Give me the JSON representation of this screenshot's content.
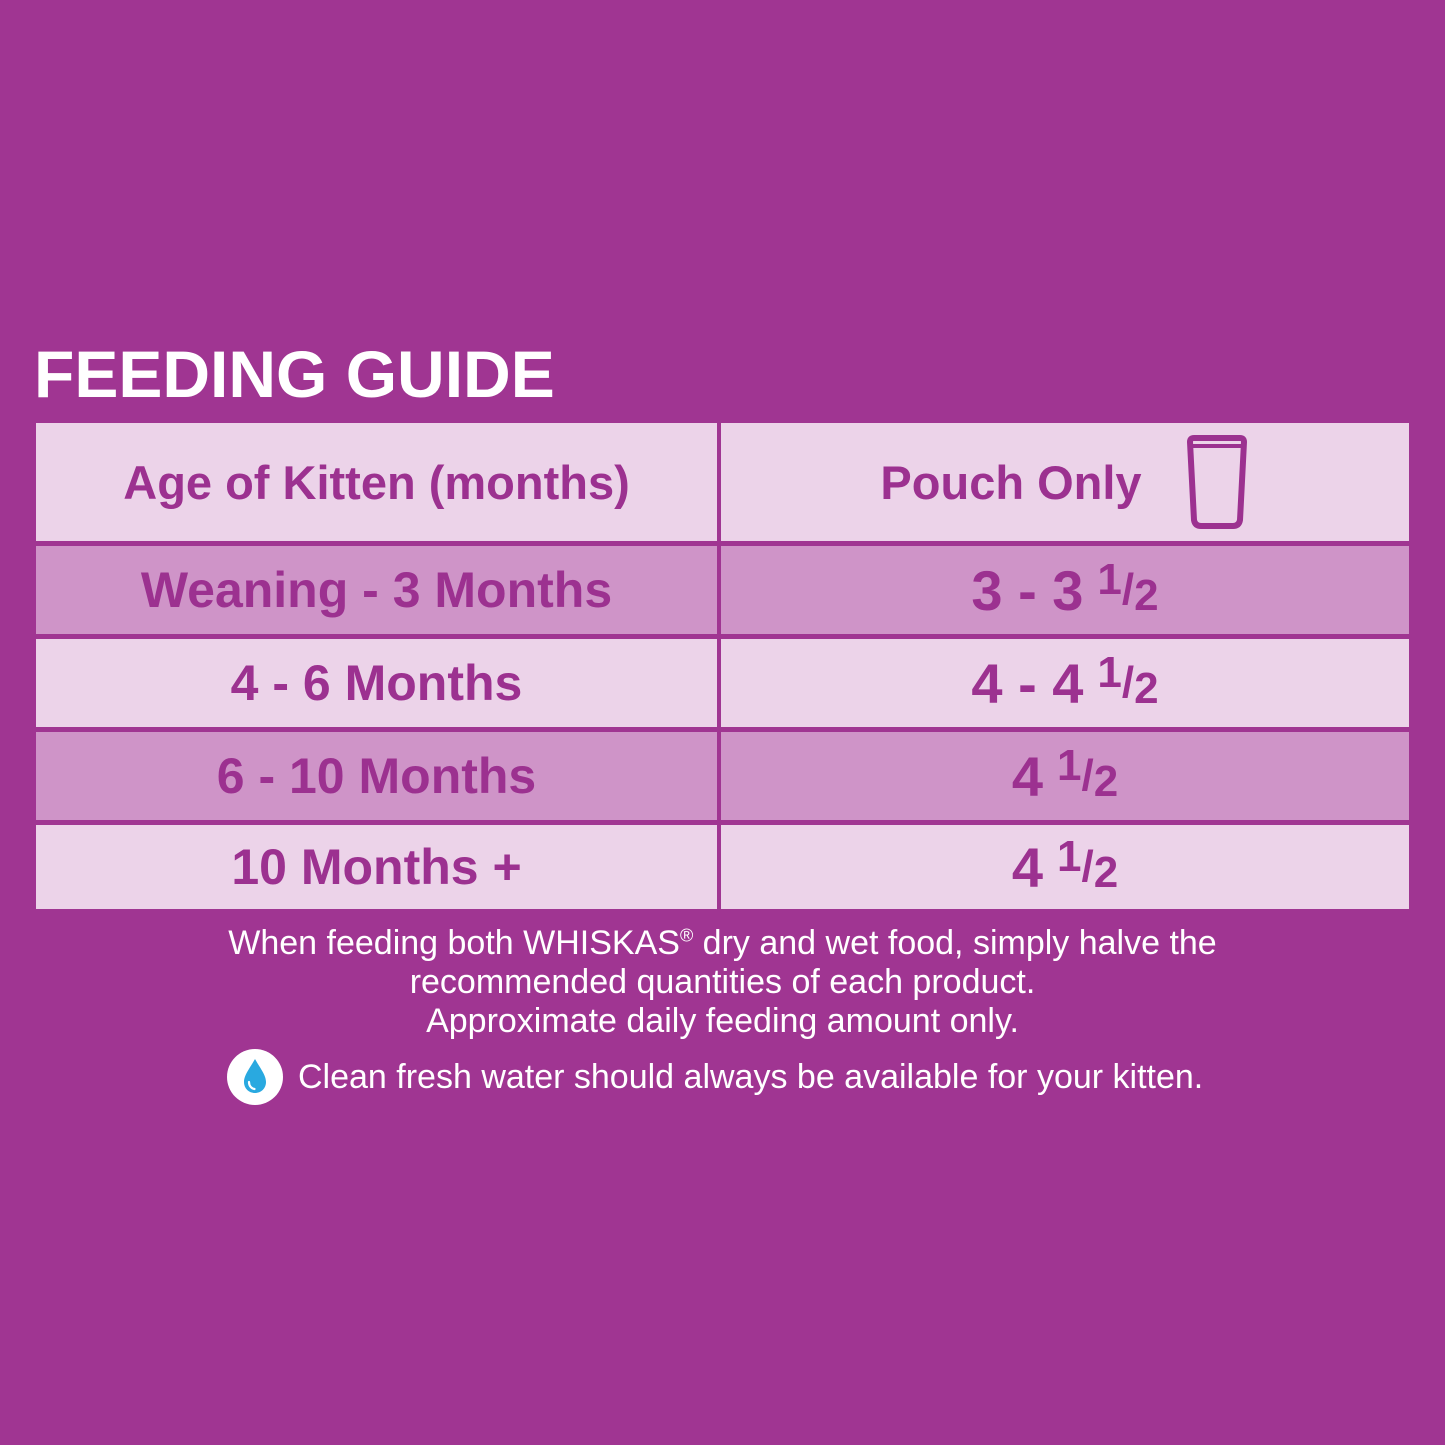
{
  "title": "FEEDING GUIDE",
  "table": {
    "header": {
      "age_label": "Age of Kitten (months)",
      "amount_label": "Pouch Only",
      "amount_icon": "pouch-icon"
    },
    "rows": [
      {
        "age": "Weaning - 3 Months",
        "amount_whole": "3 - 3",
        "amount_num": "1",
        "amount_den": "2",
        "shade": "mid"
      },
      {
        "age": "4 - 6 Months",
        "amount_whole": "4 - 4",
        "amount_num": "1",
        "amount_den": "2",
        "shade": "light"
      },
      {
        "age": "6 - 10 Months",
        "amount_whole": "4",
        "amount_num": "1",
        "amount_den": "2",
        "shade": "mid"
      },
      {
        "age": "10 Months +",
        "amount_whole": "4",
        "amount_num": "1",
        "amount_den": "2",
        "shade": "light"
      }
    ]
  },
  "notes": {
    "line1_before": "When feeding both WHISKAS",
    "line1_mark": "®",
    "line1_after": " dry and wet food, simply halve the",
    "line2": "recommended quantities of each product.",
    "line3": "Approximate daily feeding amount only.",
    "water_icon": "water-drop-icon",
    "water_text": "Clean fresh water should always be available for your kitten."
  },
  "colors": {
    "background": "#a03592",
    "row_light": "#ecd3e9",
    "row_mid": "#cf94c8",
    "table_text": "#9c3190",
    "water_drop": "#29a9e0"
  }
}
